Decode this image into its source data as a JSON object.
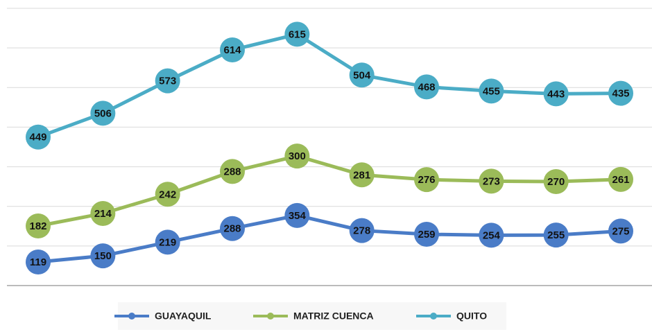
{
  "chart_data": {
    "type": "line",
    "stacked": true,
    "categories": [
      null,
      null,
      null,
      null,
      null,
      null,
      null,
      null,
      null,
      null
    ],
    "series": [
      {
        "name": "GUAYAQUIL",
        "color": "#4a7cc7",
        "values": [
          119,
          150,
          219,
          288,
          354,
          278,
          259,
          254,
          255,
          275
        ]
      },
      {
        "name": "MATRIZ CUENCA",
        "color": "#9bbb59",
        "values": [
          182,
          214,
          242,
          288,
          300,
          281,
          276,
          273,
          270,
          261
        ]
      },
      {
        "name": "QUITO",
        "color": "#4bacc6",
        "values": [
          449,
          506,
          573,
          614,
          615,
          504,
          468,
          455,
          443,
          435
        ]
      }
    ],
    "ylim": [
      0,
      1400
    ],
    "yticks": [
      0,
      200,
      400,
      600,
      800,
      1000,
      1200,
      1400
    ],
    "grid": true,
    "legend": "bottom"
  }
}
